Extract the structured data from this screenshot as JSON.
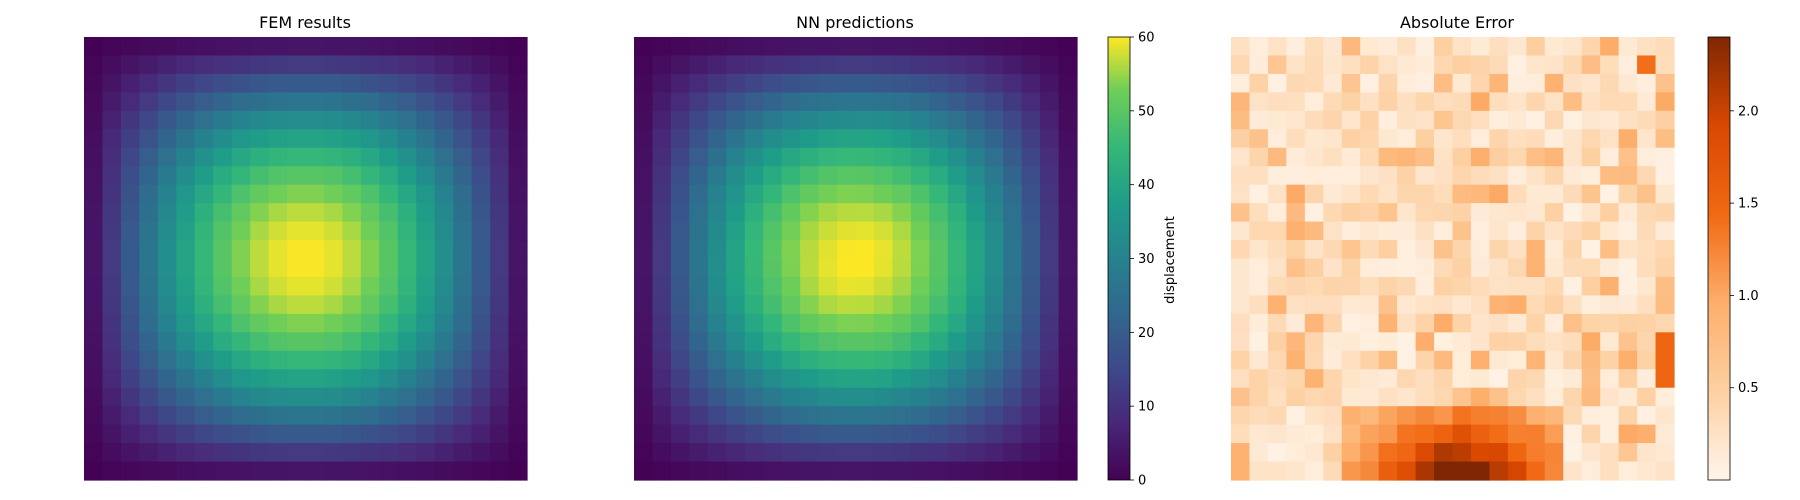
{
  "chart_data": [
    {
      "type": "heatmap",
      "title": "FEM results",
      "grid_size": 24,
      "colormap": "viridis",
      "vmin": 0,
      "vmax": 60,
      "field": "smooth displacement bump peaking near rows 11-12, cols 11-12; approx 60*sin(pi*(r+0.5)/24)*sin(pi*(c+0.5)/24)",
      "peak_value": 60,
      "axes_visible": false
    },
    {
      "type": "heatmap",
      "title": "NN predictions",
      "grid_size": 24,
      "colormap": "viridis",
      "vmin": 0,
      "vmax": 60,
      "field": "near-identical to FEM results",
      "colorbar": {
        "label": "displacement",
        "ticks": [
          0,
          10,
          20,
          30,
          40,
          50,
          60
        ]
      },
      "axes_visible": false
    },
    {
      "type": "heatmap",
      "title": "Absolute Error",
      "grid_size": 24,
      "colormap": "Oranges",
      "vmin": 0,
      "vmax": 2.4,
      "field": "mostly below 0.5 with a band of high error (1.5-2.4) along bottom rows, cols 7-17",
      "colorbar": {
        "label": "",
        "ticks": [
          0.5,
          1.0,
          1.5,
          2.0
        ]
      },
      "axes_visible": false
    }
  ]
}
